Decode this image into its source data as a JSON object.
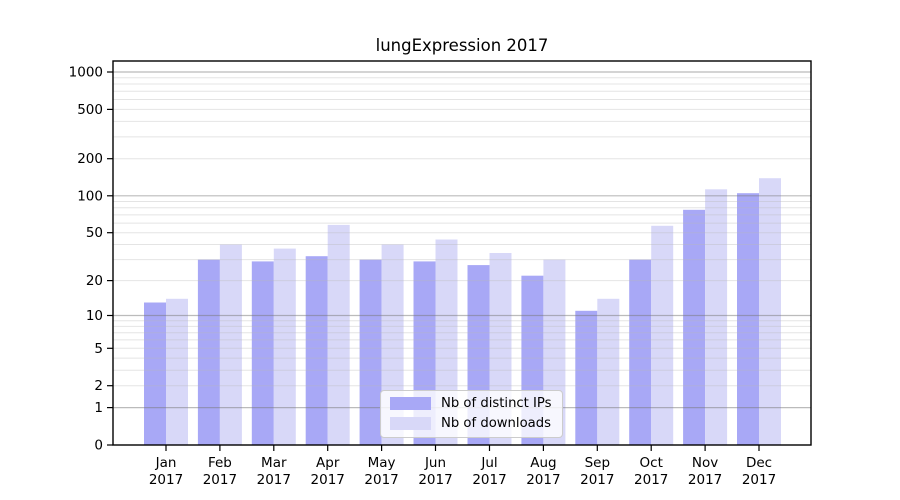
{
  "figure": {
    "title": "lungExpression 2017"
  },
  "legend": {
    "items": [
      {
        "label": "Nb of distinct IPs",
        "color": "#a8a8f6"
      },
      {
        "label": "Nb of downloads",
        "color": "#d8d8f8"
      }
    ]
  },
  "chart_data": {
    "type": "bar",
    "title": "lungExpression 2017",
    "categories": [
      "Jan",
      "Feb",
      "Mar",
      "Apr",
      "May",
      "Jun",
      "Jul",
      "Aug",
      "Sep",
      "Oct",
      "Nov",
      "Dec"
    ],
    "category_year": "2017",
    "series": [
      {
        "name": "Nb of distinct IPs",
        "color": "#a8a8f6",
        "values": [
          13,
          30,
          29,
          32,
          30,
          29,
          27,
          22,
          11,
          30,
          77,
          105
        ]
      },
      {
        "name": "Nb of downloads",
        "color": "#d8d8f8",
        "values": [
          14,
          40,
          37,
          58,
          40,
          44,
          34,
          30,
          14,
          57,
          113,
          139
        ]
      }
    ],
    "xlabel": "",
    "ylabel": "",
    "yscale": "log1p",
    "yticks": [
      0,
      1,
      2,
      5,
      10,
      20,
      50,
      100,
      200,
      500,
      1000
    ],
    "major_gridlines": [
      1,
      10,
      100,
      1000
    ],
    "minor_gridlines": [
      2,
      3,
      4,
      5,
      6,
      7,
      8,
      9,
      20,
      30,
      40,
      50,
      60,
      70,
      80,
      90,
      200,
      300,
      400,
      500,
      600,
      700,
      800,
      900
    ],
    "ylim": [
      0,
      1220
    ],
    "grid": true,
    "legend_position": "lower center",
    "colors": {
      "major_grid": "rgba(120,120,120,0.50)",
      "minor_grid": "rgba(185,185,185,0.38)",
      "spine": "#000000",
      "tick_text": "#000000"
    }
  }
}
